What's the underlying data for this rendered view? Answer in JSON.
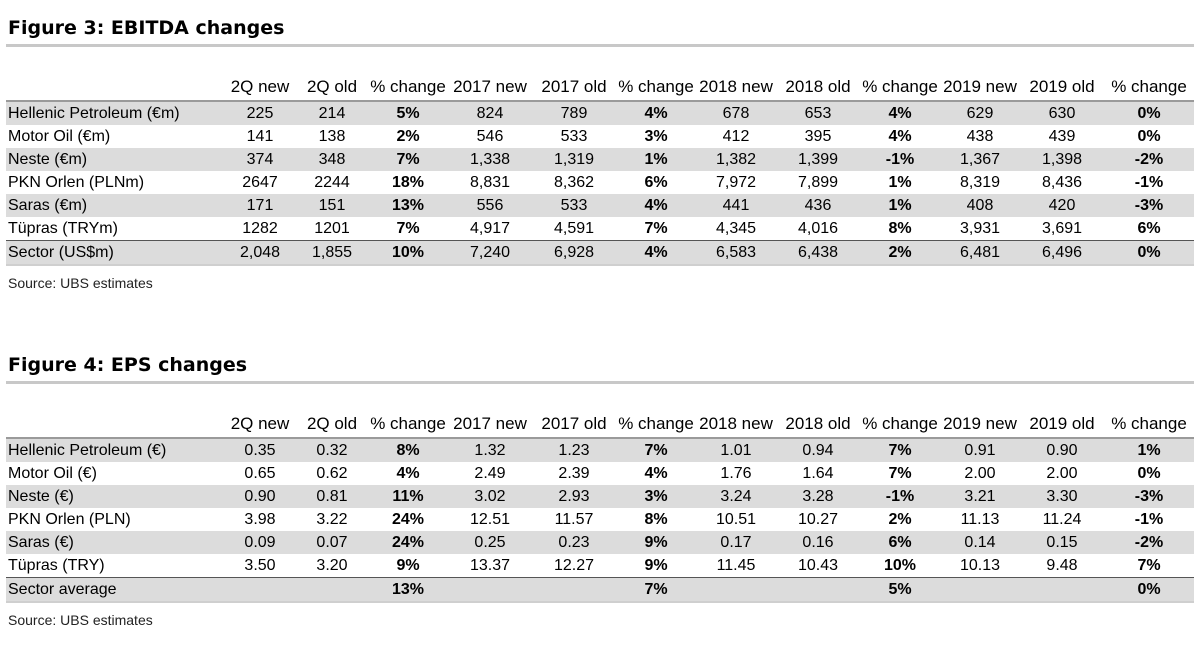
{
  "columns": [
    "",
    "2Q new",
    "2Q old",
    "% change",
    "2017 new",
    "2017 old",
    "% change",
    "2018 new",
    "2018 old",
    "% change",
    "2019 new",
    "2019 old",
    "% change"
  ],
  "figures": [
    {
      "title": "Figure 3: EBITDA changes",
      "rows": [
        [
          "Hellenic Petroleum (€m)",
          "225",
          "214",
          "5%",
          "824",
          "789",
          "4%",
          "678",
          "653",
          "4%",
          "629",
          "630",
          "0%"
        ],
        [
          "Motor Oil (€m)",
          "141",
          "138",
          "2%",
          "546",
          "533",
          "3%",
          "412",
          "395",
          "4%",
          "438",
          "439",
          "0%"
        ],
        [
          "Neste (€m)",
          "374",
          "348",
          "7%",
          "1,338",
          "1,319",
          "1%",
          "1,382",
          "1,399",
          "-1%",
          "1,367",
          "1,398",
          "-2%"
        ],
        [
          "PKN Orlen (PLNm)",
          "2647",
          "2244",
          "18%",
          "8,831",
          "8,362",
          "6%",
          "7,972",
          "7,899",
          "1%",
          "8,319",
          "8,436",
          "-1%"
        ],
        [
          "Saras (€m)",
          "171",
          "151",
          "13%",
          "556",
          "533",
          "4%",
          "441",
          "436",
          "1%",
          "408",
          "420",
          "-3%"
        ],
        [
          "Tüpras (TRYm)",
          "1282",
          "1201",
          "7%",
          "4,917",
          "4,591",
          "7%",
          "4,345",
          "4,016",
          "8%",
          "3,931",
          "3,691",
          "6%"
        ],
        [
          "Sector (US$m)",
          "2,048",
          "1,855",
          "10%",
          "7,240",
          "6,928",
          "4%",
          "6,583",
          "6,438",
          "2%",
          "6,481",
          "6,496",
          "0%"
        ]
      ],
      "source": "Source:  UBS estimates"
    },
    {
      "title": "Figure 4: EPS changes",
      "rows": [
        [
          "Hellenic Petroleum (€)",
          "0.35",
          "0.32",
          "8%",
          "1.32",
          "1.23",
          "7%",
          "1.01",
          "0.94",
          "7%",
          "0.91",
          "0.90",
          "1%"
        ],
        [
          "Motor Oil (€)",
          "0.65",
          "0.62",
          "4%",
          "2.49",
          "2.39",
          "4%",
          "1.76",
          "1.64",
          "7%",
          "2.00",
          "2.00",
          "0%"
        ],
        [
          "Neste (€)",
          "0.90",
          "0.81",
          "11%",
          "3.02",
          "2.93",
          "3%",
          "3.24",
          "3.28",
          "-1%",
          "3.21",
          "3.30",
          "-3%"
        ],
        [
          "PKN Orlen (PLN)",
          "3.98",
          "3.22",
          "24%",
          "12.51",
          "11.57",
          "8%",
          "10.51",
          "10.27",
          "2%",
          "11.13",
          "11.24",
          "-1%"
        ],
        [
          "Saras (€)",
          "0.09",
          "0.07",
          "24%",
          "0.25",
          "0.23",
          "9%",
          "0.17",
          "0.16",
          "6%",
          "0.14",
          "0.15",
          "-2%"
        ],
        [
          "Tüpras (TRY)",
          "3.50",
          "3.20",
          "9%",
          "13.37",
          "12.27",
          "9%",
          "11.45",
          "10.43",
          "10%",
          "10.13",
          "9.48",
          "7%"
        ],
        [
          "Sector average",
          "",
          "",
          "13%",
          "",
          "",
          "7%",
          "",
          "",
          "5%",
          "",
          "",
          "0%"
        ]
      ],
      "source": "Source:  UBS estimates"
    }
  ],
  "colors": {
    "stripe": "#dcdcdc",
    "rule": "#c8c8c8",
    "text": "#000000"
  }
}
